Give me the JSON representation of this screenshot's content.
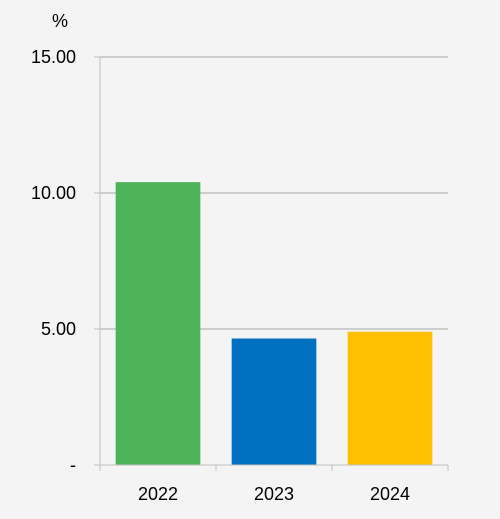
{
  "chart_data": {
    "type": "bar",
    "unit": "%",
    "categories": [
      "2022",
      "2023",
      "2024"
    ],
    "values": [
      10.4,
      4.65,
      4.9
    ],
    "colors": [
      "#4db35a",
      "#0070c0",
      "#ffc000"
    ],
    "ylim": [
      0,
      15
    ],
    "yticks": [
      0,
      5,
      10,
      15
    ],
    "ytick_labels": [
      "-",
      "5.00",
      "10.00",
      "15.00"
    ],
    "grid": true,
    "legend": "none"
  }
}
